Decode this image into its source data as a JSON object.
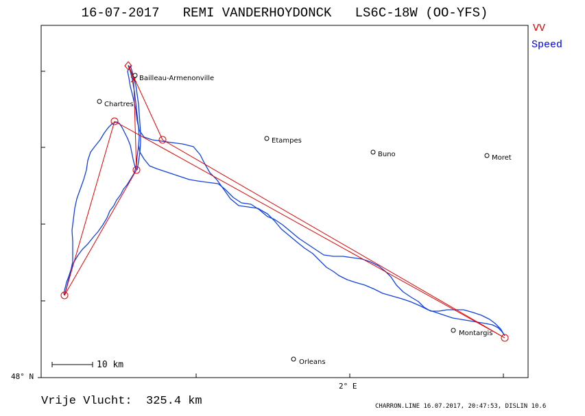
{
  "header": {
    "title": "16-07-2017   REMI VANDERHOYDONCK   LS6C-18W (OO-YFS)"
  },
  "legend": {
    "vv": "VV",
    "speed": "Speed",
    "colors": {
      "vv": "#e00000",
      "speed": "#0000e0"
    }
  },
  "axes": {
    "lat_label": "48° N",
    "lon_label": "2° E"
  },
  "scale": {
    "label": "10 km"
  },
  "summary": {
    "distance": "Vrije Vlucht:  325.4 km"
  },
  "footer": {
    "text": "CHARRON.LINE 16.07.2017, 20:47:53, DISLIN 10.6"
  },
  "cities": [
    {
      "name": "Bailleau-Armenonville"
    },
    {
      "name": "Chartres"
    },
    {
      "name": "Etampes"
    },
    {
      "name": "Buno"
    },
    {
      "name": "Moret"
    },
    {
      "name": "Montargis"
    },
    {
      "name": "Orleans"
    }
  ]
}
